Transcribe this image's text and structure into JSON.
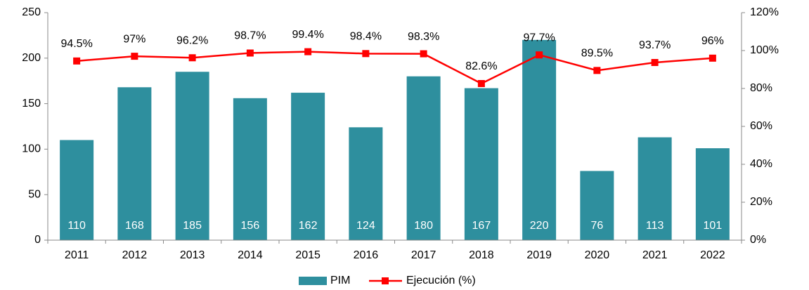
{
  "chart_data": {
    "type": "bar_line",
    "categories": [
      "2011",
      "2012",
      "2013",
      "2014",
      "2015",
      "2016",
      "2017",
      "2018",
      "2019",
      "2020",
      "2021",
      "2022"
    ],
    "series": [
      {
        "name": "PIM",
        "color": "#2e8f9e",
        "values": [
          110,
          168,
          185,
          156,
          162,
          124,
          180,
          167,
          220,
          76,
          113,
          101
        ]
      },
      {
        "name": "Ejecución (%)",
        "color": "#ff0000",
        "axis": "y2",
        "values": [
          94.5,
          97,
          96.2,
          98.7,
          99.4,
          98.4,
          98.3,
          82.6,
          97.7,
          89.5,
          93.7,
          96
        ],
        "value_labels": [
          "94.5%",
          "97%",
          "96.2%",
          "98.7%",
          "99.4%",
          "98.4%",
          "98.3%",
          "82.6%",
          "97.7%",
          "89.5%",
          "93.7%",
          "96%"
        ]
      }
    ],
    "ylim": [
      0,
      250
    ],
    "yticks": [
      0,
      50,
      100,
      150,
      200,
      250
    ],
    "y2lim": [
      0,
      120
    ],
    "y2ticks": [
      {
        "value": 0,
        "label": "0%"
      },
      {
        "value": 20,
        "label": "20%"
      },
      {
        "value": 40,
        "label": "40%"
      },
      {
        "value": 60,
        "label": "60%"
      },
      {
        "value": 80,
        "label": "80%"
      },
      {
        "value": 100,
        "label": "100%"
      },
      {
        "value": 120,
        "label": "120%"
      }
    ],
    "legend": "bottom"
  }
}
